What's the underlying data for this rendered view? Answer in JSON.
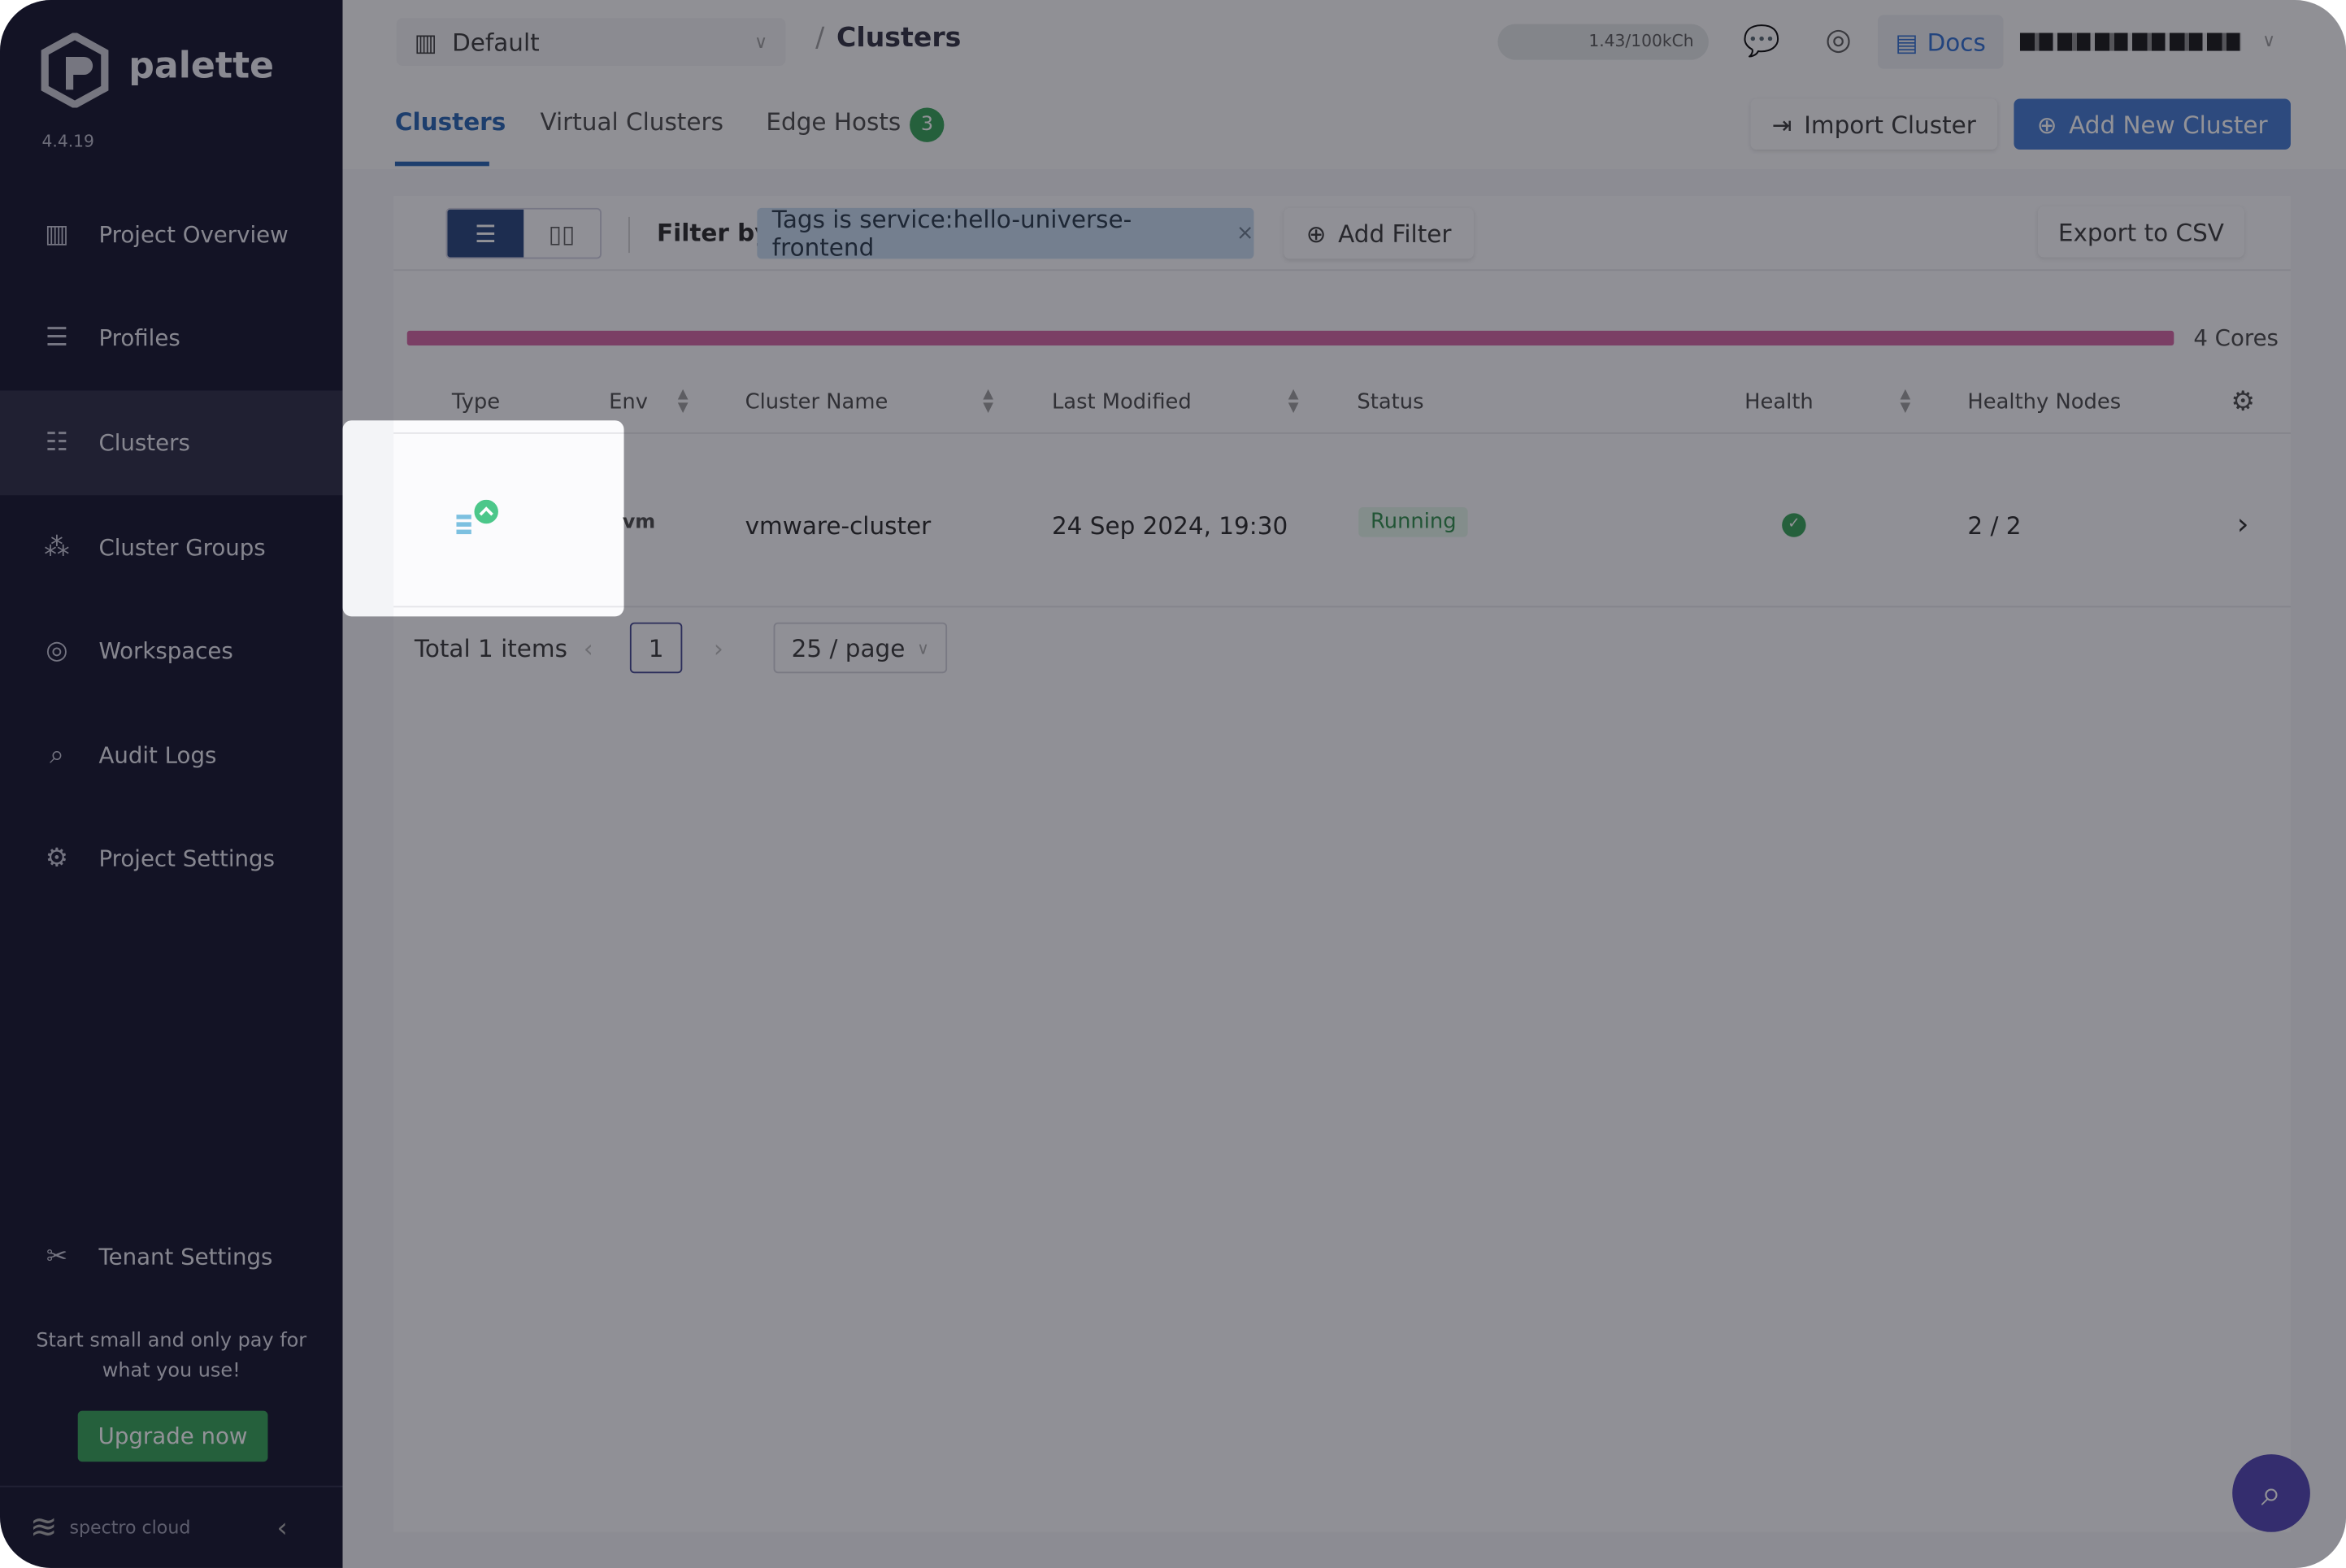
{
  "app": {
    "name": "palette",
    "version": "4.4.19"
  },
  "sidebar": {
    "items": [
      {
        "label": "Project Overview",
        "icon": "chart-icon"
      },
      {
        "label": "Profiles",
        "icon": "database-icon"
      },
      {
        "label": "Clusters",
        "icon": "clusters-icon",
        "active": true
      },
      {
        "label": "Cluster Groups",
        "icon": "cluster-groups-icon"
      },
      {
        "label": "Workspaces",
        "icon": "workspaces-icon"
      },
      {
        "label": "Audit Logs",
        "icon": "audit-logs-icon"
      },
      {
        "label": "Project Settings",
        "icon": "gear-icon"
      }
    ],
    "tenant_settings": "Tenant Settings",
    "promo": "Start small and only pay for what you use!",
    "upgrade": "Upgrade now",
    "footer_brand": "spectro cloud"
  },
  "header": {
    "project": "Default",
    "breadcrumb_sep": "/",
    "breadcrumb": "Clusters",
    "usage": "1.43/100kCh",
    "docs": "Docs"
  },
  "tabs": [
    {
      "label": "Clusters",
      "active": true
    },
    {
      "label": "Virtual Clusters"
    },
    {
      "label": "Edge Hosts",
      "badge": "3"
    }
  ],
  "actions": {
    "import": "Import Cluster",
    "add": "Add New Cluster"
  },
  "filter": {
    "label": "Filter by:",
    "chip": "Tags is service:hello-universe-frontend",
    "add": "Add Filter",
    "export": "Export to CSV"
  },
  "usage_bar": {
    "label": "4 Cores",
    "fill_percent": 100,
    "color": "#d4619f"
  },
  "table": {
    "columns": [
      "Type",
      "Env",
      "Cluster Name",
      "Last Modified",
      "Status",
      "Health",
      "Healthy Nodes"
    ],
    "rows": [
      {
        "env": "vm",
        "name": "vmware-cluster",
        "modified": "24 Sep 2024, 19:30",
        "status": "Running",
        "health": "healthy",
        "nodes": "2 / 2"
      }
    ]
  },
  "pagination": {
    "total": "Total 1 items",
    "page": "1",
    "page_size": "25 / page"
  },
  "colors": {
    "accent": "#1f5fae",
    "primary_button": "#3f76d0",
    "success": "#2f9f52",
    "sidebar": "#0d0d26"
  }
}
